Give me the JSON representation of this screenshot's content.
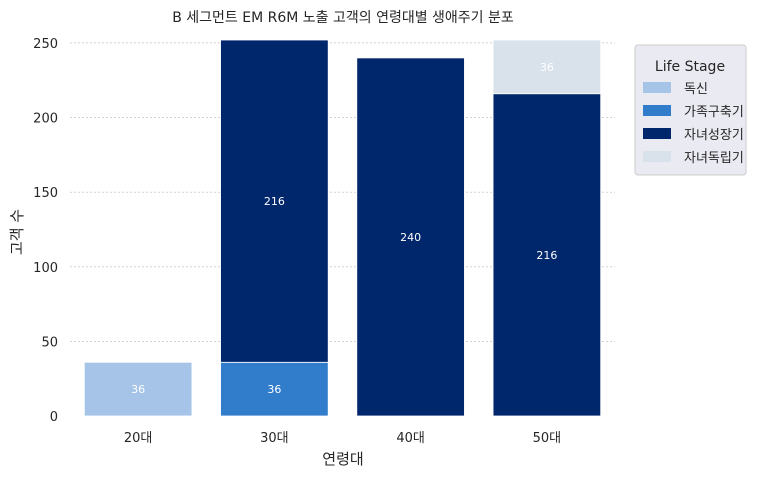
{
  "chart_data": {
    "type": "bar",
    "stacked": true,
    "title": "B 세그먼트 EM R6M 노출 고객의 연령대별 생애주기 분포",
    "xlabel": "연령대",
    "ylabel": "고객 수",
    "categories": [
      "20대",
      "30대",
      "40대",
      "50대"
    ],
    "series": [
      {
        "name": "독신",
        "values": [
          36,
          0,
          0,
          0
        ],
        "color": "#a6c4e8"
      },
      {
        "name": "가족구축기",
        "values": [
          0,
          36,
          0,
          0
        ],
        "color": "#327ccc"
      },
      {
        "name": "자녀성장기",
        "values": [
          0,
          216,
          240,
          216
        ],
        "color": "#00266b"
      },
      {
        "name": "자녀독립기",
        "values": [
          0,
          0,
          0,
          36
        ],
        "color": "#d9e1eb"
      }
    ],
    "value_labels": [
      "36",
      "216",
      "240"
    ],
    "ylim": [
      0,
      252
    ],
    "yticks": [
      "0",
      "50",
      "100",
      "150",
      "200",
      "250"
    ],
    "grid": true,
    "legend": {
      "title": "Life Stage",
      "position": "top-right-outside"
    }
  }
}
